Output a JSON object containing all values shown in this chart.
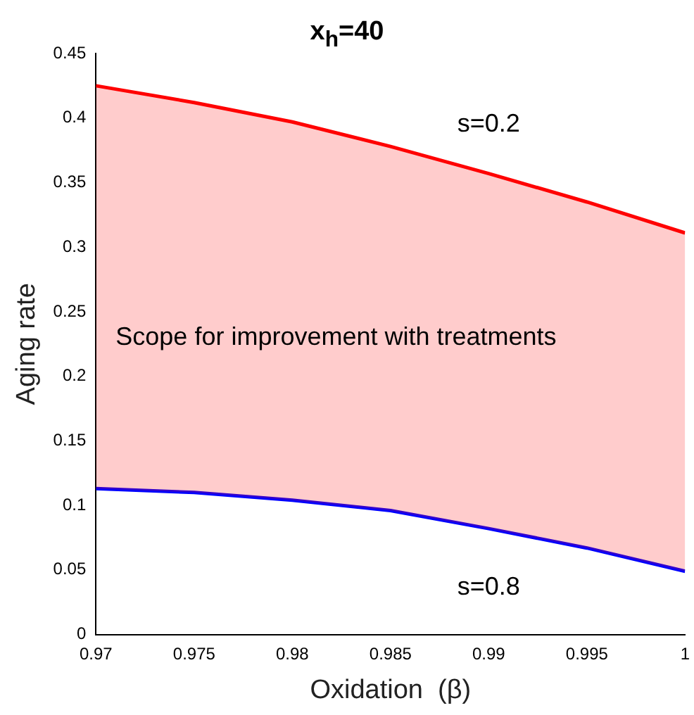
{
  "chart_data": {
    "type": "line",
    "title": "x$_{h}$=40",
    "xlabel": "Oxidation  (β)",
    "ylabel": "Aging rate",
    "x": [
      0.97,
      0.975,
      0.98,
      0.985,
      0.99,
      0.995,
      1
    ],
    "series": [
      {
        "name": "s=0.2",
        "color": "#ff0000",
        "values": [
          0.425,
          0.412,
          0.397,
          0.378,
          0.357,
          0.335,
          0.311
        ],
        "lower": [
          0.113,
          0.11,
          0.104,
          0.096,
          0.082,
          0.067,
          0.049
        ],
        "upper": [
          0.425,
          0.412,
          0.397,
          0.378,
          0.357,
          0.335,
          0.311
        ]
      },
      {
        "name": "s=0.8",
        "color": "#0000ff",
        "values": [
          0.113,
          0.11,
          0.104,
          0.096,
          0.082,
          0.067,
          0.049
        ]
      }
    ],
    "annotations": [
      "Scope for improvement with treatments"
    ],
    "xlim": [
      0.97,
      1
    ],
    "xticks": [
      0.97,
      0.975,
      0.98,
      0.985,
      0.99,
      0.995,
      1
    ],
    "ylim": [
      0,
      0.45
    ],
    "yticks": [
      0,
      0.05,
      0.1,
      0.15,
      0.2,
      0.25,
      0.3,
      0.35,
      0.4,
      0.45
    ],
    "grid": false,
    "legend": false,
    "marker": "none",
    "line_style": "solid"
  }
}
